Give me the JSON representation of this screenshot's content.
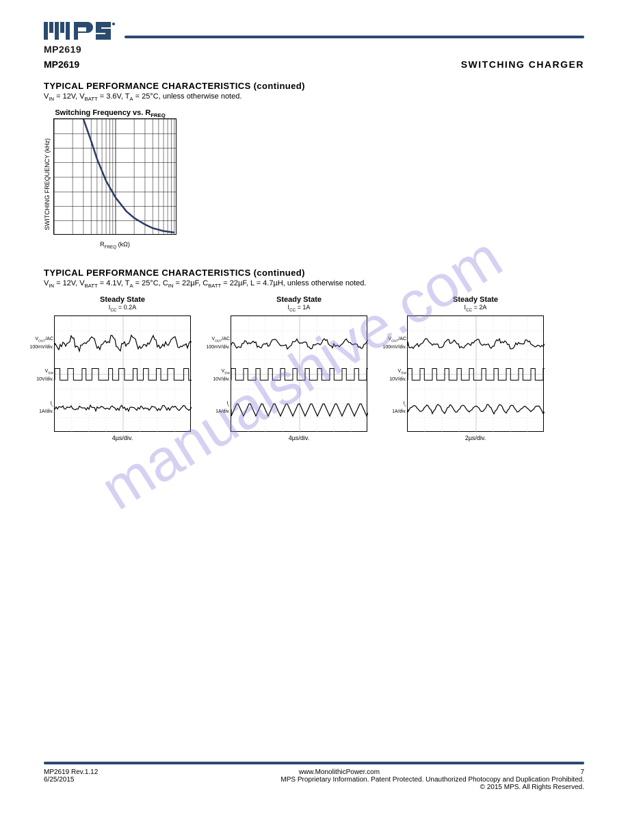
{
  "header": {
    "part_left": "MP2619",
    "part_right": "SWITCHING CHARGER"
  },
  "section1": {
    "title": "TYPICAL PERFORMANCE CHARACTERISTICS (continued)",
    "sub_html": "V<sub>IN</sub> = 12V, V<sub>BATT</sub> = 3.6V, T<sub>A</sub> = 25°C, unless otherwise noted."
  },
  "freq_chart": {
    "type": "line",
    "title_html": "Switching Frequency vs. R<sub>FREQ</sub>",
    "ylabel_html": "SWITCHING FREQUENCY (kHz)",
    "xlabel_html": "R<sub>FREQ</sub> (kΩ)",
    "xscale": "log",
    "x_ticks": [
      10,
      100,
      1000
    ],
    "y_ticks": [
      100,
      300,
      500,
      700,
      900,
      1100,
      1300,
      1500,
      1700
    ],
    "ylim": [
      100,
      1700
    ],
    "line_color": "#2b3a67",
    "line_width": 2.5,
    "grid_color": "#000000",
    "background_color": "#ffffff",
    "points": [
      [
        30,
        1700
      ],
      [
        40,
        1400
      ],
      [
        50,
        1150
      ],
      [
        70,
        850
      ],
      [
        100,
        620
      ],
      [
        150,
        430
      ],
      [
        200,
        340
      ],
      [
        300,
        250
      ],
      [
        400,
        200
      ],
      [
        600,
        160
      ],
      [
        900,
        140
      ]
    ]
  },
  "section2": {
    "title": "TYPICAL PERFORMANCE CHARACTERISTICS (continued)",
    "sub_html": "V<sub>IN</sub> = 12V, V<sub>BATT</sub> = 4.1V, T<sub>A</sub> = 25°C, C<sub>IN</sub> = 22µF, C<sub>BATT</sub> = 22µF, L = 4.7µH, unless otherwise noted."
  },
  "scope_common": {
    "ch_labels": [
      {
        "text_html": "V<sub>OUT</sub>/AC<br>100mV/div.",
        "top_pct": 18
      },
      {
        "text_html": "V<sub>SW</sub><br>10V/div.",
        "top_pct": 46
      },
      {
        "text_html": "I<sub>L</sub><br>1A/div.",
        "top_pct": 74
      }
    ],
    "xlabel_unit": "µs/div.",
    "grid_color": "#bfbfbf",
    "border_color": "#000000",
    "trace_color": "#000000",
    "background_color": "#ffffff"
  },
  "scopes": [
    {
      "title": "Steady State",
      "sub_html": "I<sub>CC</sub> = 0.2A",
      "xlabel_val": "4",
      "trace1_period": 15,
      "trace1_noise": 3,
      "trace1_amp": 6,
      "trace2_duty": 0.4,
      "trace2_period": 22,
      "trace2_jitter": 6,
      "trace3_period": 15,
      "trace3_amp": 5,
      "trace3_noise": 2
    },
    {
      "title": "Steady State",
      "sub_html": "I<sub>CC</sub> = 1A",
      "xlabel_val": "4",
      "trace1_period": 18,
      "trace1_noise": 2,
      "trace1_amp": 4,
      "trace2_duty": 0.35,
      "trace2_period": 18,
      "trace2_jitter": 0,
      "trace3_period": 18,
      "trace3_amp": 10,
      "trace3_noise": 0
    },
    {
      "title": "Steady State",
      "sub_html": "I<sub>CC</sub> = 2A",
      "xlabel_val": "2",
      "trace1_period": 18,
      "trace1_noise": 2,
      "trace1_amp": 4,
      "trace2_duty": 0.35,
      "trace2_period": 18,
      "trace2_jitter": 0,
      "trace3_period": 18,
      "trace3_amp": 6,
      "trace3_noise": 1
    }
  ],
  "footer": {
    "left": "MP2619 Rev.1.12",
    "center": "www.MonolithicPower.com",
    "right_page": "7",
    "left2": "6/25/2015",
    "right2": "MPS Proprietary Information. Patent Protected. Unauthorized Photocopy and Duplication Prohibited.",
    "right3": "© 2015 MPS. All Rights Reserved."
  },
  "watermark": "manualshive.com"
}
